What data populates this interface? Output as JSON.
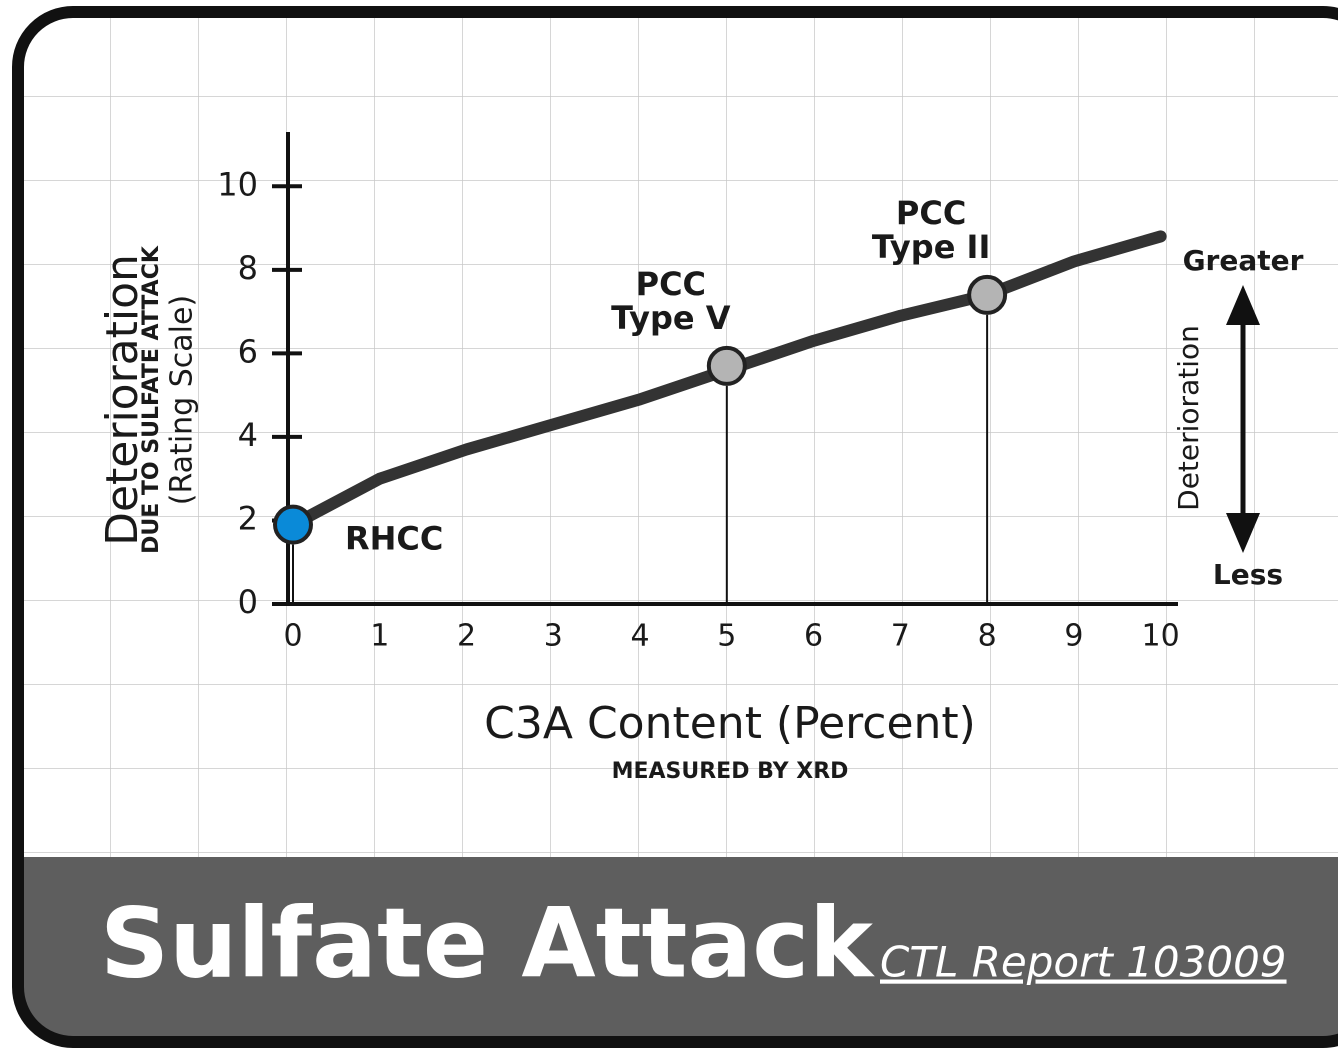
{
  "chart_data": {
    "type": "line",
    "title": "Sulfate Attack",
    "subtitle": "CTL Report 103009",
    "x_label": "C3A Content (Percent)",
    "x_sublabel": "MEASURED BY XRD",
    "y_label": "Deterioration",
    "y_sublabel": "DUE TO SULFATE ATTACK",
    "y_sublabel2": "(Rating Scale)",
    "side_scale": {
      "top": "Greater",
      "label": "Deterioration",
      "bottom": "Less"
    },
    "xlim": [
      0,
      10.2
    ],
    "ylim": [
      0,
      11.3
    ],
    "xticks": [
      0,
      1,
      2,
      3,
      4,
      5,
      6,
      7,
      8,
      9,
      10
    ],
    "yticks": [
      0,
      2,
      4,
      6,
      8,
      10
    ],
    "series": [
      {
        "color": "#333333",
        "x": [
          0,
          1,
          2,
          3,
          4,
          5,
          6,
          7,
          8,
          9,
          10
        ],
        "values": [
          1.9,
          3.0,
          3.7,
          4.3,
          4.9,
          5.6,
          6.3,
          6.9,
          7.4,
          8.2,
          8.8
        ]
      }
    ],
    "points": [
      {
        "lines": [
          "RHCC"
        ],
        "x": 0,
        "y": 1.9,
        "color": "#0a8ad8"
      },
      {
        "lines": [
          "PCC",
          "Type V"
        ],
        "x": 5,
        "y": 5.7,
        "color": "#b4b4b4"
      },
      {
        "lines": [
          "PCC",
          "Type II"
        ],
        "x": 8,
        "y": 7.4,
        "color": "#b4b4b4"
      }
    ]
  }
}
